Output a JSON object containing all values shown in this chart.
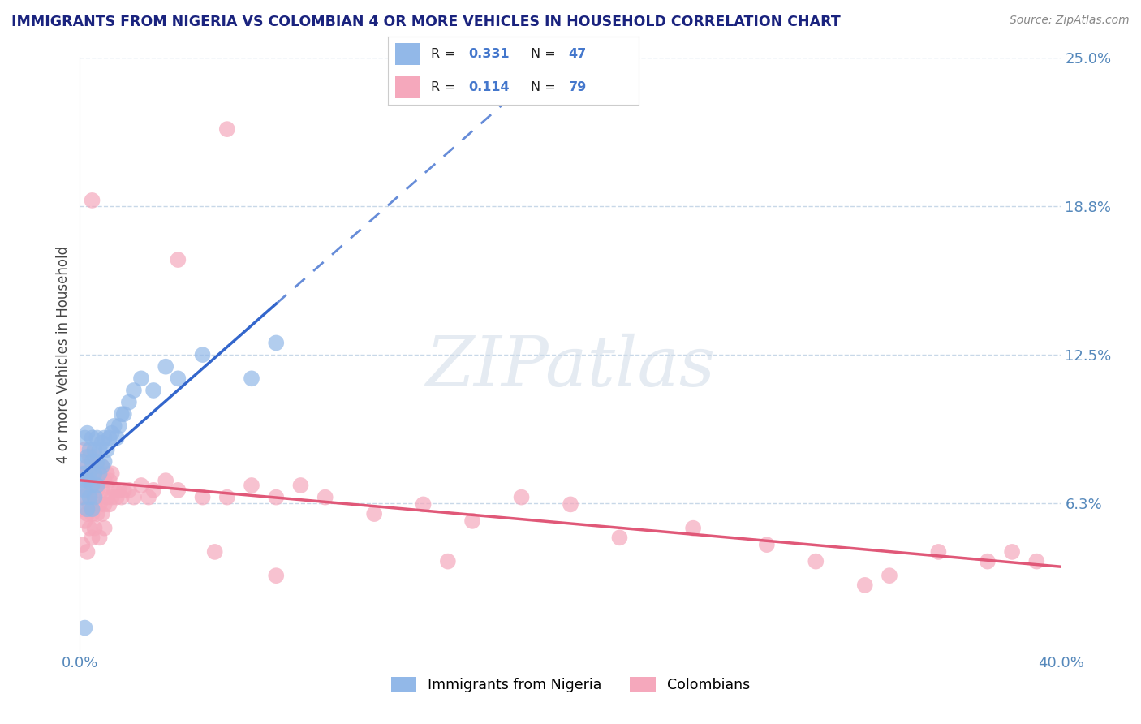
{
  "title": "IMMIGRANTS FROM NIGERIA VS COLOMBIAN 4 OR MORE VEHICLES IN HOUSEHOLD CORRELATION CHART",
  "source": "Source: ZipAtlas.com",
  "ylabel": "4 or more Vehicles in Household",
  "xlim": [
    0.0,
    0.4
  ],
  "ylim": [
    0.0,
    0.25
  ],
  "xtick_positions": [
    0.0,
    0.4
  ],
  "xticklabels": [
    "0.0%",
    "40.0%"
  ],
  "ytick_positions": [
    0.0625,
    0.125,
    0.1875,
    0.25
  ],
  "ytick_labels": [
    "6.3%",
    "12.5%",
    "18.8%",
    "25.0%"
  ],
  "grid_color": "#c8d8e8",
  "background_color": "#ffffff",
  "nigeria_color": "#92b8e8",
  "colombian_color": "#f5a8bc",
  "nigeria_line_color": "#3366cc",
  "colombian_line_color": "#e05878",
  "nigeria_R": 0.331,
  "nigeria_N": 47,
  "colombian_R": 0.114,
  "colombian_N": 79,
  "watermark": "ZIPatlas",
  "legend_labels": [
    "Immigrants from Nigeria",
    "Colombians"
  ],
  "nigeria_points_x": [
    0.001,
    0.001,
    0.001,
    0.002,
    0.002,
    0.002,
    0.003,
    0.003,
    0.003,
    0.003,
    0.004,
    0.004,
    0.004,
    0.005,
    0.005,
    0.005,
    0.005,
    0.006,
    0.006,
    0.006,
    0.007,
    0.007,
    0.007,
    0.008,
    0.008,
    0.009,
    0.009,
    0.01,
    0.01,
    0.011,
    0.012,
    0.013,
    0.014,
    0.015,
    0.016,
    0.017,
    0.018,
    0.02,
    0.022,
    0.025,
    0.03,
    0.035,
    0.04,
    0.05,
    0.07,
    0.08,
    0.002
  ],
  "nigeria_points_y": [
    0.072,
    0.065,
    0.08,
    0.068,
    0.075,
    0.09,
    0.06,
    0.072,
    0.082,
    0.092,
    0.065,
    0.075,
    0.085,
    0.06,
    0.07,
    0.08,
    0.09,
    0.065,
    0.075,
    0.085,
    0.07,
    0.08,
    0.09,
    0.075,
    0.085,
    0.078,
    0.088,
    0.08,
    0.09,
    0.085,
    0.09,
    0.092,
    0.095,
    0.09,
    0.095,
    0.1,
    0.1,
    0.105,
    0.11,
    0.115,
    0.11,
    0.12,
    0.115,
    0.125,
    0.115,
    0.13,
    0.01
  ],
  "colombian_points_x": [
    0.001,
    0.001,
    0.001,
    0.002,
    0.002,
    0.002,
    0.003,
    0.003,
    0.003,
    0.003,
    0.004,
    0.004,
    0.004,
    0.004,
    0.005,
    0.005,
    0.005,
    0.005,
    0.006,
    0.006,
    0.006,
    0.006,
    0.007,
    0.007,
    0.007,
    0.008,
    0.008,
    0.008,
    0.009,
    0.009,
    0.009,
    0.01,
    0.01,
    0.01,
    0.011,
    0.011,
    0.012,
    0.012,
    0.013,
    0.013,
    0.014,
    0.015,
    0.016,
    0.017,
    0.018,
    0.02,
    0.022,
    0.025,
    0.028,
    0.03,
    0.035,
    0.04,
    0.05,
    0.055,
    0.06,
    0.07,
    0.08,
    0.09,
    0.1,
    0.12,
    0.14,
    0.16,
    0.18,
    0.2,
    0.22,
    0.25,
    0.28,
    0.3,
    0.33,
    0.35,
    0.37,
    0.38,
    0.39,
    0.005,
    0.32,
    0.15,
    0.08,
    0.06,
    0.04
  ],
  "colombian_points_y": [
    0.06,
    0.075,
    0.045,
    0.065,
    0.055,
    0.085,
    0.058,
    0.068,
    0.078,
    0.042,
    0.062,
    0.072,
    0.052,
    0.082,
    0.058,
    0.068,
    0.078,
    0.048,
    0.062,
    0.072,
    0.052,
    0.082,
    0.058,
    0.068,
    0.078,
    0.062,
    0.072,
    0.048,
    0.058,
    0.068,
    0.078,
    0.062,
    0.072,
    0.052,
    0.065,
    0.075,
    0.062,
    0.072,
    0.065,
    0.075,
    0.068,
    0.065,
    0.068,
    0.065,
    0.068,
    0.068,
    0.065,
    0.07,
    0.065,
    0.068,
    0.072,
    0.068,
    0.065,
    0.042,
    0.065,
    0.07,
    0.065,
    0.07,
    0.065,
    0.058,
    0.062,
    0.055,
    0.065,
    0.062,
    0.048,
    0.052,
    0.045,
    0.038,
    0.032,
    0.042,
    0.038,
    0.042,
    0.038,
    0.19,
    0.028,
    0.038,
    0.032,
    0.22,
    0.165
  ]
}
